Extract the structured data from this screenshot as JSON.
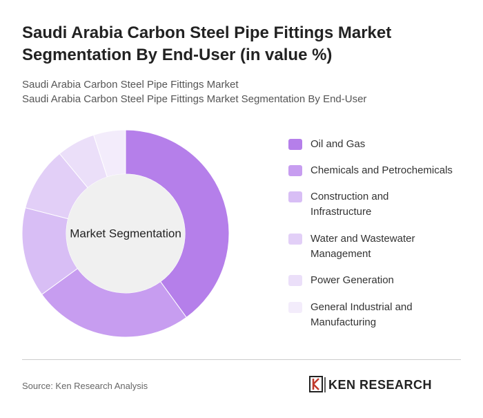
{
  "chart_data": {
    "type": "donut",
    "title": "Saudi Arabia Carbon Steel Pipe Fittings Market Segmentation By End-User (in value %)",
    "subtitle": [
      "Saudi Arabia Carbon Steel Pipe Fittings Market",
      "Saudi Arabia Carbon Steel Pipe Fittings Market Segmentation By End-User"
    ],
    "center_label": "Market Segmentation",
    "categories": [
      "Oil and Gas",
      "Chemicals and Petrochemicals",
      "Construction and Infrastructure",
      "Water and Wastewater Management",
      "Power Generation",
      "General Industrial and Manufacturing"
    ],
    "values": [
      40,
      25,
      14,
      10,
      6,
      5
    ],
    "colors": [
      "#b57fea",
      "#c79df0",
      "#d8bef5",
      "#e2cff7",
      "#ebdff9",
      "#f3ecfb"
    ]
  },
  "footer": {
    "source": "Source: Ken Research Analysis",
    "logo": "KEN RESEARCH"
  }
}
